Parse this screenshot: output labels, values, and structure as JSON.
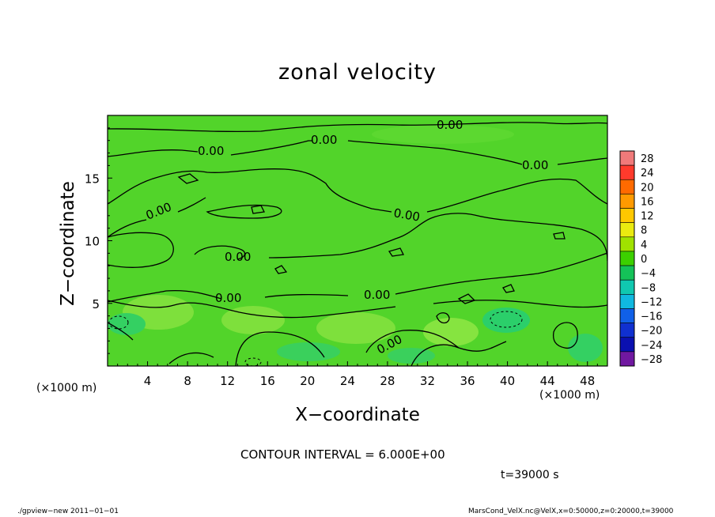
{
  "chart_data": {
    "type": "heatmap",
    "title": "zonal velocity",
    "xlabel": "X−coordinate",
    "ylabel": "Z−coordinate",
    "x_unit_left": "(×1000 m)",
    "x_unit_right": "(×1000 m)",
    "xlim": [
      0,
      50
    ],
    "ylim": [
      0,
      20
    ],
    "x_ticks": [
      "4",
      "8",
      "12",
      "16",
      "20",
      "24",
      "28",
      "32",
      "36",
      "40",
      "44",
      "48"
    ],
    "x_tick_values": [
      4,
      8,
      12,
      16,
      20,
      24,
      28,
      32,
      36,
      40,
      44,
      48
    ],
    "y_ticks": [
      "5",
      "10",
      "15"
    ],
    "y_tick_values": [
      5,
      10,
      15
    ],
    "colorbar": {
      "labels": [
        "28",
        "24",
        "20",
        "16",
        "12",
        "8",
        "4",
        "0",
        "−4",
        "−8",
        "−12",
        "−16",
        "−20",
        "−24",
        "−28"
      ],
      "colors": [
        "#f07a7a",
        "#ff3a2c",
        "#ff6a00",
        "#ff9a00",
        "#ffc800",
        "#eaea10",
        "#a0e200",
        "#3cd000",
        "#14c258",
        "#10c8b0",
        "#10b8e0",
        "#1060e8",
        "#1030d0",
        "#0a10b0",
        "#7018a0"
      ]
    },
    "contour_labels": [
      "0.00",
      "0.00",
      "0.00",
      "0.00",
      "0.00",
      "0.00",
      "0.00",
      "0.00",
      "0.00",
      "0.00"
    ],
    "contour_interval": "CONTOUR INTERVAL = 6.000E+00",
    "time": "t=39000 s",
    "field_colors": {
      "base": "#52d42a",
      "light": "#7ee03c",
      "cool": "#2bcf6a"
    }
  },
  "footer": {
    "left": "./gpview−new   2011−01−01",
    "right": "MarsCond_VelX.nc@VelX,x=0:50000,z=0:20000,t=39000"
  }
}
